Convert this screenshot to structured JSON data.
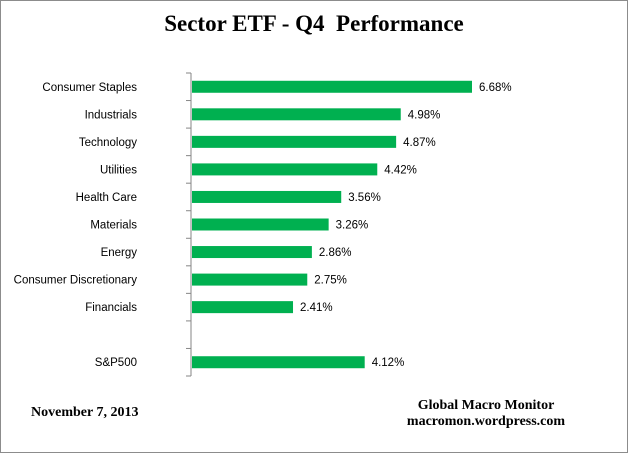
{
  "chart_data": {
    "type": "bar",
    "orientation": "horizontal",
    "title": "Sector ETF - Q4  Performance",
    "categories": [
      "Consumer Staples",
      "Industrials",
      "Technology",
      "Utilities",
      "Health Care",
      "Materials",
      "Energy",
      "Consumer Discretionary",
      "Financials",
      "",
      "S&P500"
    ],
    "values": [
      6.68,
      4.98,
      4.87,
      4.42,
      3.56,
      3.26,
      2.86,
      2.75,
      2.41,
      null,
      4.12
    ],
    "data_labels": [
      "6.68%",
      "4.98%",
      "4.87%",
      "4.42%",
      "3.56%",
      "3.26%",
      "2.86%",
      "2.75%",
      "2.41%",
      "",
      "4.12%"
    ],
    "unit": "%",
    "xlim": [
      0,
      7.5
    ],
    "grid": false,
    "legend": "none",
    "bar_color": "#00b050",
    "axis_color": "#868686"
  },
  "footer": {
    "date": "November 7,  2013",
    "source_name": "Global Macro Monitor",
    "source_url": "macromon.wordpress.com"
  }
}
